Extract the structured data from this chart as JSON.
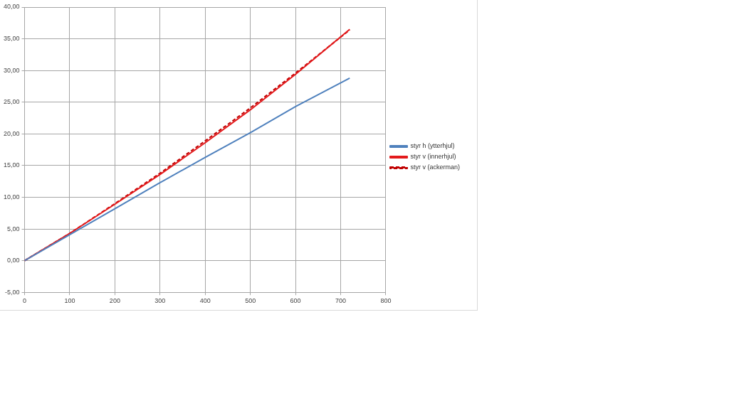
{
  "chart_data": {
    "type": "line",
    "x": [
      0,
      100,
      200,
      300,
      400,
      500,
      600,
      720
    ],
    "series": [
      {
        "name": "styr h (ytterhjul)",
        "color": "#4f81bd",
        "values": [
          0,
          4.1,
          8.2,
          12.3,
          16.3,
          20.2,
          24.3,
          28.8
        ]
      },
      {
        "name": "styr v (innerhjul)",
        "color": "#e31a1c",
        "values": [
          0,
          4.3,
          8.9,
          13.6,
          18.6,
          23.8,
          29.4,
          36.5
        ]
      },
      {
        "name": "styr v (ackerman)",
        "color": "#c00000",
        "line_style": "dashed",
        "values": [
          0,
          4.3,
          9.0,
          13.8,
          18.9,
          24.1,
          29.6,
          36.4
        ]
      }
    ],
    "xlim": [
      0,
      800
    ],
    "xticks": [
      0,
      100,
      200,
      300,
      400,
      500,
      600,
      700,
      800
    ],
    "ylim": [
      -5,
      40
    ],
    "yticks": [
      {
        "value": -5,
        "label": "-5,00"
      },
      {
        "value": 0,
        "label": "0,00"
      },
      {
        "value": 5,
        "label": "5,00"
      },
      {
        "value": 10,
        "label": "10,00"
      },
      {
        "value": 15,
        "label": "15,00"
      },
      {
        "value": 20,
        "label": "20,00"
      },
      {
        "value": 25,
        "label": "25,00"
      },
      {
        "value": 30,
        "label": "30,00"
      },
      {
        "value": 35,
        "label": "35,00"
      },
      {
        "value": 40,
        "label": "40,00"
      }
    ],
    "grid": true,
    "legend": "right",
    "marker": "none",
    "line_style": "solid"
  }
}
